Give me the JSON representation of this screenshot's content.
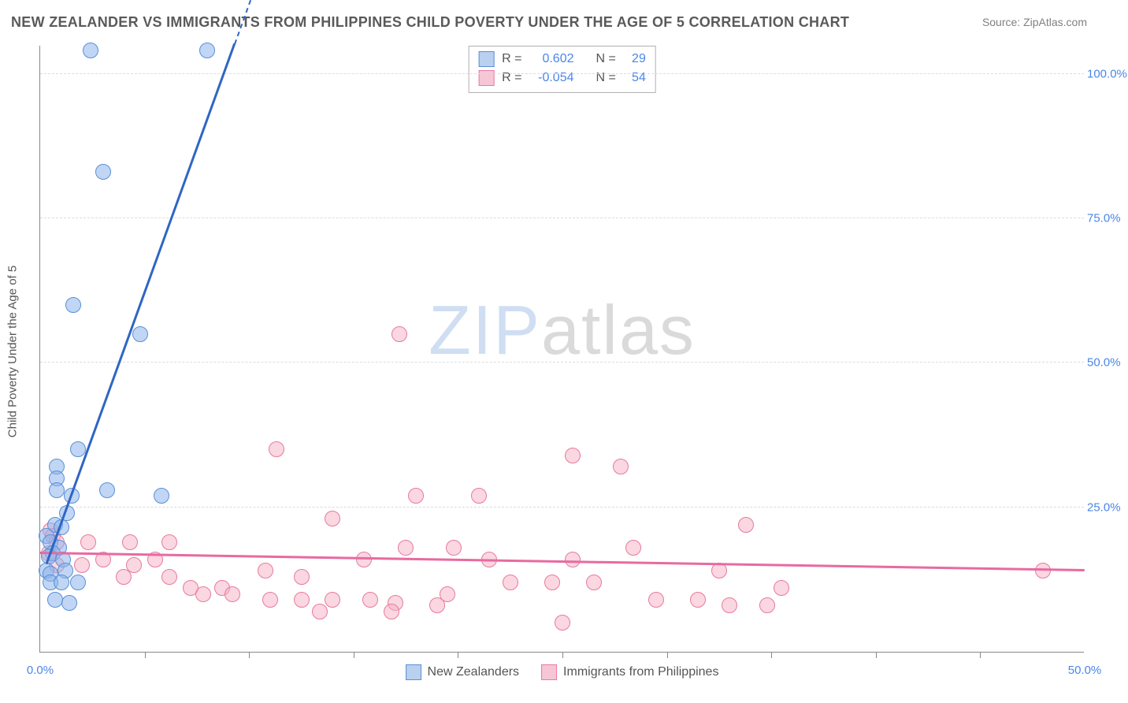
{
  "title": "NEW ZEALANDER VS IMMIGRANTS FROM PHILIPPINES CHILD POVERTY UNDER THE AGE OF 5 CORRELATION CHART",
  "source_prefix": "Source: ",
  "source_name": "ZipAtlas.com",
  "ylabel": "Child Poverty Under the Age of 5",
  "watermark": {
    "part1": "ZIP",
    "part2": "atlas"
  },
  "axes": {
    "xlim": [
      0,
      50
    ],
    "ylim": [
      0,
      105
    ],
    "xticks": [
      0,
      50
    ],
    "xtick_labels": [
      "0.0%",
      "50.0%"
    ],
    "xminor_count": 10,
    "yticks": [
      25,
      50,
      75,
      100
    ],
    "ytick_labels": [
      "25.0%",
      "50.0%",
      "75.0%",
      "100.0%"
    ],
    "grid_color": "#dcdcdc",
    "axis_color": "#888888"
  },
  "series": {
    "blue": {
      "label": "New Zealanders",
      "fill": "rgba(140,180,235,0.55)",
      "stroke": "#5b8fd6",
      "swatch_fill": "#b9d0ef",
      "swatch_stroke": "#5b8fd6",
      "marker_radius": 10,
      "R": "0.602",
      "N": "29",
      "trend": {
        "x1": 0.3,
        "y1": 15,
        "x2": 9.3,
        "y2": 105,
        "color": "#2f66c4",
        "width": 3,
        "dash_extend_to_x": 10.2
      },
      "points": [
        [
          2.4,
          104
        ],
        [
          8.0,
          104
        ],
        [
          3.0,
          83
        ],
        [
          1.6,
          60
        ],
        [
          4.8,
          55
        ],
        [
          1.8,
          35
        ],
        [
          0.8,
          32
        ],
        [
          0.8,
          30
        ],
        [
          0.8,
          28
        ],
        [
          3.2,
          28
        ],
        [
          1.5,
          27
        ],
        [
          5.8,
          27
        ],
        [
          1.3,
          24
        ],
        [
          0.7,
          22
        ],
        [
          1.0,
          21.5
        ],
        [
          0.3,
          20
        ],
        [
          0.5,
          19
        ],
        [
          0.9,
          18
        ],
        [
          0.6,
          17
        ],
        [
          0.4,
          16.5
        ],
        [
          1.1,
          16
        ],
        [
          0.3,
          14
        ],
        [
          1.2,
          14
        ],
        [
          0.5,
          13.5
        ],
        [
          0.5,
          12
        ],
        [
          1.0,
          12
        ],
        [
          1.8,
          12
        ],
        [
          0.7,
          9
        ],
        [
          1.4,
          8.5
        ]
      ]
    },
    "pink": {
      "label": "Immigrants from Philippines",
      "fill": "rgba(245,175,195,0.5)",
      "stroke": "#e77aa0",
      "swatch_fill": "#f6c6d6",
      "swatch_stroke": "#e77aa0",
      "marker_radius": 10,
      "R": "-0.054",
      "N": "54",
      "trend": {
        "x1": 0,
        "y1": 17,
        "x2": 50,
        "y2": 14,
        "color": "#e86aa0",
        "width": 2.5
      },
      "points": [
        [
          17.2,
          55
        ],
        [
          11.3,
          35
        ],
        [
          25.5,
          34
        ],
        [
          27.8,
          32
        ],
        [
          18.0,
          27
        ],
        [
          21.0,
          27
        ],
        [
          14.0,
          23
        ],
        [
          33.8,
          22
        ],
        [
          0.5,
          21
        ],
        [
          0.6,
          20
        ],
        [
          0.8,
          19
        ],
        [
          2.3,
          19
        ],
        [
          4.3,
          19
        ],
        [
          6.2,
          19
        ],
        [
          17.5,
          18
        ],
        [
          19.8,
          18
        ],
        [
          28.4,
          18
        ],
        [
          0.4,
          17
        ],
        [
          3.0,
          16
        ],
        [
          5.5,
          16
        ],
        [
          15.5,
          16
        ],
        [
          21.5,
          16
        ],
        [
          25.5,
          16
        ],
        [
          0.8,
          15
        ],
        [
          2.0,
          15
        ],
        [
          4.5,
          15
        ],
        [
          10.8,
          14
        ],
        [
          32.5,
          14
        ],
        [
          48.0,
          14
        ],
        [
          4.0,
          13
        ],
        [
          6.2,
          13
        ],
        [
          12.5,
          13
        ],
        [
          22.5,
          12
        ],
        [
          24.5,
          12
        ],
        [
          26.5,
          12
        ],
        [
          7.2,
          11
        ],
        [
          8.7,
          11
        ],
        [
          35.5,
          11
        ],
        [
          7.8,
          10
        ],
        [
          9.2,
          10
        ],
        [
          19.5,
          10
        ],
        [
          11.0,
          9
        ],
        [
          12.5,
          9
        ],
        [
          14.0,
          9
        ],
        [
          15.8,
          9
        ],
        [
          17.0,
          8.5
        ],
        [
          29.5,
          9
        ],
        [
          31.5,
          9
        ],
        [
          19.0,
          8
        ],
        [
          33.0,
          8
        ],
        [
          34.8,
          8
        ],
        [
          13.4,
          7
        ],
        [
          16.8,
          7
        ],
        [
          25.0,
          5
        ]
      ]
    }
  },
  "legend_top": {
    "rows": [
      {
        "series": "blue",
        "R_label": "R =",
        "N_label": "N ="
      },
      {
        "series": "pink",
        "R_label": "R =",
        "N_label": "N ="
      }
    ]
  }
}
